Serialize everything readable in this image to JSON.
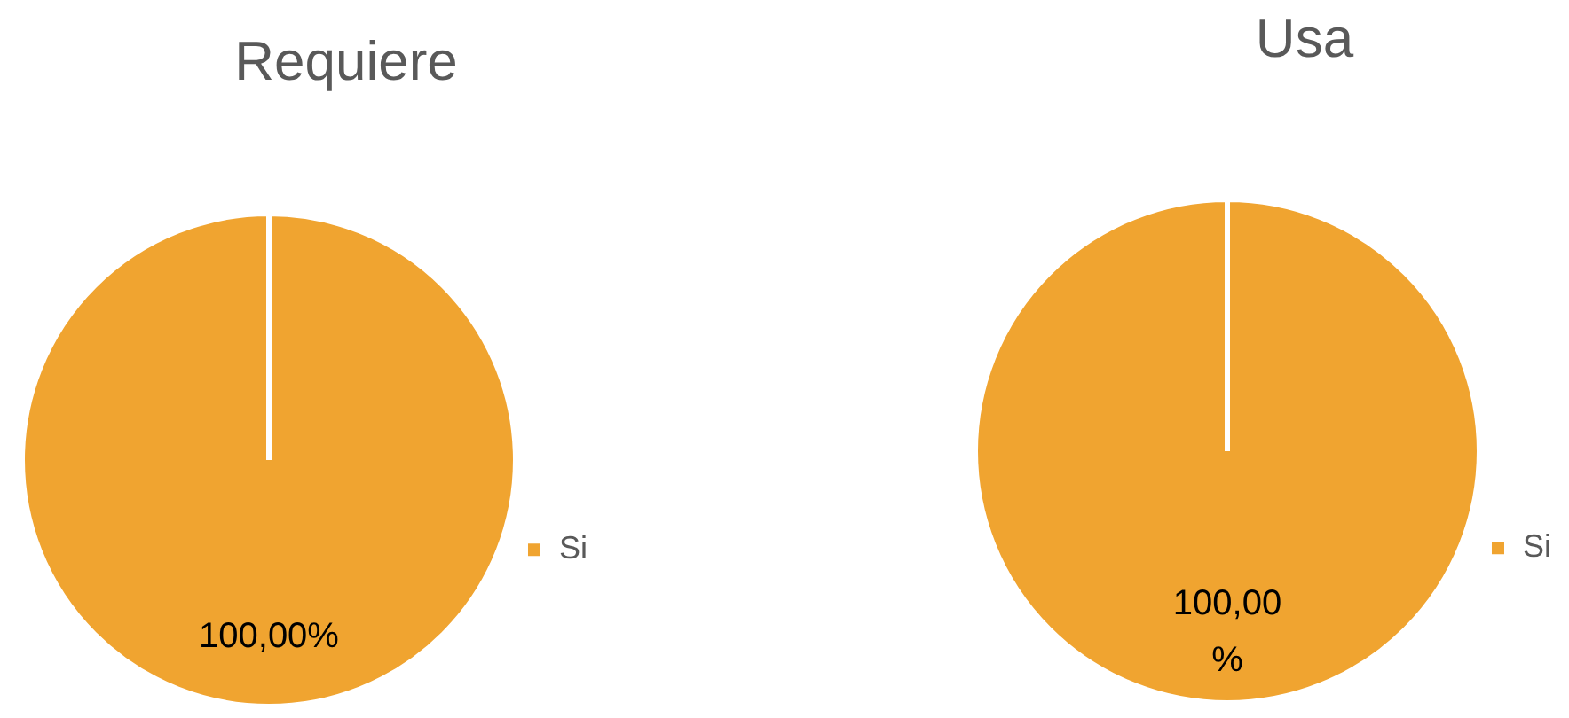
{
  "chart_data": [
    {
      "type": "pie",
      "title": "Requiere",
      "categories": [
        "Si"
      ],
      "values": [
        100
      ],
      "colors": [
        "#f0a430"
      ],
      "value_labels": [
        "100,00%"
      ],
      "legend": "right"
    },
    {
      "type": "pie",
      "title": "Usa",
      "categories": [
        "Si"
      ],
      "values": [
        100
      ],
      "colors": [
        "#f0a430"
      ],
      "value_labels": [
        "100,00%"
      ],
      "legend": "right"
    }
  ]
}
